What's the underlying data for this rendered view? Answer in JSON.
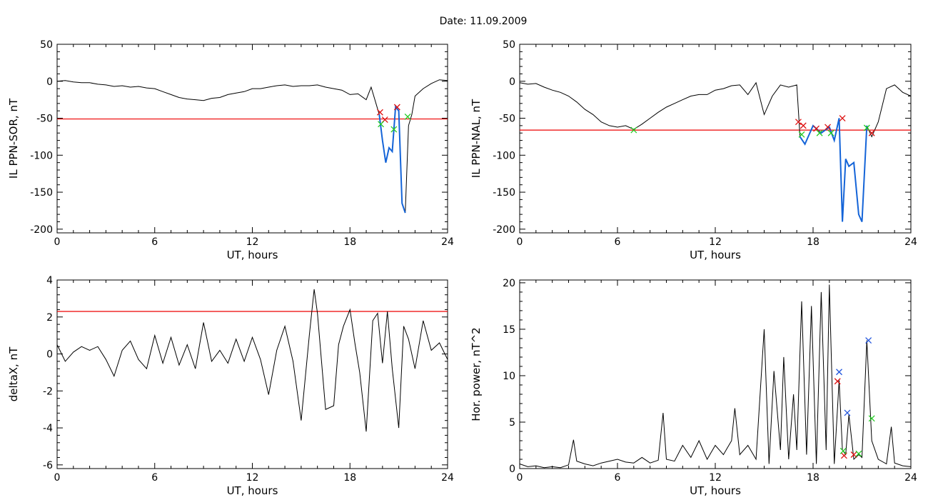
{
  "page_title": "Date:  11.09.2009",
  "colors": {
    "trace": "#000000",
    "threshold": "#ee0000",
    "highlight": "#1464d8",
    "marker_red": "#dd1111",
    "marker_green": "#22cc22",
    "marker_blue": "#2255dd"
  },
  "chart_data": [
    {
      "id": "il-sor",
      "type": "line",
      "xlabel": "UT, hours",
      "ylabel": "IL PPN-SOR, nT",
      "xlim": [
        0,
        24
      ],
      "ylim": [
        -205,
        50
      ],
      "xticks": [
        0,
        6,
        12,
        18,
        24
      ],
      "yticks": [
        50,
        0,
        -50,
        -100,
        -150,
        -200
      ],
      "threshold": -51,
      "x": [
        0,
        0.5,
        1,
        1.5,
        2,
        2.5,
        3,
        3.5,
        4,
        4.5,
        5,
        5.5,
        6,
        6.5,
        7,
        7.5,
        8,
        8.5,
        9,
        9.5,
        10,
        10.5,
        11,
        11.5,
        12,
        12.5,
        13,
        13.5,
        14,
        14.5,
        15,
        15.5,
        16,
        16.5,
        17,
        17.5,
        18,
        18.5,
        19,
        19.3,
        19.6,
        19.8,
        20,
        20.2,
        20.4,
        20.6,
        20.8,
        21,
        21.2,
        21.4,
        21.6,
        21.8,
        22,
        22.5,
        23,
        23.5,
        24
      ],
      "y": [
        0,
        1,
        -1,
        -2,
        -2,
        -4,
        -5,
        -7,
        -6,
        -8,
        -7,
        -9,
        -10,
        -14,
        -18,
        -22,
        -24,
        -25,
        -26,
        -23,
        -22,
        -18,
        -16,
        -14,
        -10,
        -10,
        -8,
        -6,
        -5,
        -7,
        -6,
        -6,
        -5,
        -8,
        -10,
        -12,
        -18,
        -17,
        -25,
        -8,
        -30,
        -45,
        -80,
        -110,
        -90,
        -95,
        -35,
        -40,
        -165,
        -178,
        -60,
        -45,
        -20,
        -10,
        -3,
        2,
        1
      ],
      "highlight": {
        "x0": 19.8,
        "x1": 21.4
      },
      "markers": [
        {
          "x": 19.85,
          "y": -42,
          "color": "red"
        },
        {
          "x": 20.15,
          "y": -52,
          "color": "red"
        },
        {
          "x": 20.9,
          "y": -35,
          "color": "red"
        },
        {
          "x": 19.9,
          "y": -58,
          "color": "green"
        },
        {
          "x": 20.7,
          "y": -65,
          "color": "green"
        },
        {
          "x": 21.55,
          "y": -48,
          "color": "green"
        }
      ]
    },
    {
      "id": "il-nal",
      "type": "line",
      "xlabel": "UT, hours",
      "ylabel": "IL PPN-NAL, nT",
      "xlim": [
        0,
        24
      ],
      "ylim": [
        -205,
        50
      ],
      "xticks": [
        0,
        6,
        12,
        18,
        24
      ],
      "yticks": [
        50,
        0,
        -50,
        -100,
        -150,
        -200
      ],
      "threshold": -66,
      "x": [
        0,
        0.5,
        1,
        1.5,
        2,
        2.5,
        3,
        3.5,
        4,
        4.5,
        5,
        5.5,
        6,
        6.5,
        7,
        7.5,
        8,
        8.5,
        9,
        9.5,
        10,
        10.5,
        11,
        11.5,
        12,
        12.5,
        13,
        13.5,
        14,
        14.5,
        15,
        15.5,
        16,
        16.5,
        17,
        17.2,
        17.5,
        18,
        18.5,
        19,
        19.3,
        19.6,
        19.8,
        20,
        20.2,
        20.5,
        20.8,
        21,
        21.3,
        21.6,
        22,
        22.5,
        23,
        23.5,
        24
      ],
      "y": [
        -2,
        -4,
        -3,
        -8,
        -12,
        -15,
        -20,
        -28,
        -38,
        -45,
        -55,
        -60,
        -62,
        -60,
        -65,
        -58,
        -50,
        -42,
        -35,
        -30,
        -25,
        -20,
        -18,
        -18,
        -12,
        -10,
        -6,
        -5,
        -18,
        -2,
        -45,
        -20,
        -5,
        -8,
        -5,
        -75,
        -85,
        -60,
        -70,
        -62,
        -80,
        -50,
        -190,
        -105,
        -115,
        -110,
        -180,
        -190,
        -60,
        -75,
        -55,
        -10,
        -5,
        -15,
        -20
      ],
      "highlight": {
        "x0": 17.1,
        "x1": 21.5
      },
      "markers": [
        {
          "x": 7.0,
          "y": -66,
          "color": "green"
        },
        {
          "x": 17.1,
          "y": -55,
          "color": "red"
        },
        {
          "x": 17.4,
          "y": -60,
          "color": "red"
        },
        {
          "x": 18.2,
          "y": -64,
          "color": "red"
        },
        {
          "x": 18.9,
          "y": -62,
          "color": "red"
        },
        {
          "x": 19.8,
          "y": -50,
          "color": "red"
        },
        {
          "x": 21.6,
          "y": -70,
          "color": "red"
        },
        {
          "x": 17.3,
          "y": -72,
          "color": "green"
        },
        {
          "x": 18.4,
          "y": -70,
          "color": "green"
        },
        {
          "x": 19.1,
          "y": -70,
          "color": "green"
        },
        {
          "x": 21.3,
          "y": -63,
          "color": "green"
        }
      ]
    },
    {
      "id": "deltax",
      "type": "line",
      "xlabel": "UT, hours",
      "ylabel": "deltaX, nT",
      "xlim": [
        0,
        24
      ],
      "ylim": [
        -6.2,
        4
      ],
      "xticks": [
        0,
        6,
        12,
        18,
        24
      ],
      "yticks": [
        4,
        2,
        0,
        -2,
        -4,
        -6
      ],
      "threshold": 2.3,
      "x": [
        0,
        0.5,
        1,
        1.5,
        2,
        2.5,
        3,
        3.5,
        4,
        4.5,
        5,
        5.5,
        6,
        6.5,
        7,
        7.5,
        8,
        8.5,
        9,
        9.5,
        10,
        10.5,
        11,
        11.5,
        12,
        12.5,
        13,
        13.5,
        14,
        14.5,
        15,
        15.5,
        15.8,
        16,
        16.5,
        17,
        17.3,
        17.6,
        18,
        18.3,
        18.6,
        19,
        19.4,
        19.7,
        20,
        20.3,
        20.6,
        21,
        21.3,
        21.6,
        22,
        22.5,
        23,
        23.5,
        24
      ],
      "y": [
        0.5,
        -0.4,
        0.1,
        0.4,
        0.2,
        0.4,
        -0.3,
        -1.2,
        0.2,
        0.7,
        -0.3,
        -0.8,
        1.0,
        -0.5,
        0.9,
        -0.6,
        0.5,
        -0.8,
        1.7,
        -0.4,
        0.2,
        -0.5,
        0.8,
        -0.4,
        0.9,
        -0.3,
        -2.2,
        0.2,
        1.5,
        -0.4,
        -3.6,
        1.0,
        3.5,
        2.2,
        -3.0,
        -2.8,
        0.5,
        1.5,
        2.4,
        0.6,
        -1.0,
        -4.2,
        1.8,
        2.2,
        -0.5,
        2.3,
        -0.8,
        -4.0,
        1.5,
        0.8,
        -0.8,
        1.8,
        0.2,
        0.6,
        -0.3
      ]
    },
    {
      "id": "hor-power",
      "type": "line",
      "xlabel": "UT, hours",
      "ylabel": "Hor. power, nT^2",
      "xlim": [
        0,
        24
      ],
      "ylim": [
        0,
        20.3
      ],
      "xticks": [
        0,
        6,
        12,
        18,
        24
      ],
      "yticks": [
        20,
        15,
        10,
        5,
        0
      ],
      "x": [
        0,
        0.5,
        1,
        1.5,
        2,
        2.5,
        3,
        3.3,
        3.5,
        4,
        4.5,
        5,
        5.5,
        6,
        6.5,
        7,
        7.5,
        8,
        8.5,
        8.8,
        9,
        9.5,
        10,
        10.5,
        11,
        11.5,
        12,
        12.5,
        13,
        13.2,
        13.5,
        14,
        14.5,
        15,
        15.3,
        15.6,
        16,
        16.2,
        16.5,
        16.8,
        17,
        17.3,
        17.6,
        17.9,
        18.2,
        18.5,
        18.8,
        19,
        19.3,
        19.6,
        19.8,
        20,
        20.2,
        20.5,
        20.8,
        21,
        21.3,
        21.6,
        22,
        22.5,
        22.8,
        23,
        23.5,
        24
      ],
      "y": [
        0.5,
        0.2,
        0.3,
        0.1,
        0.2,
        0.1,
        0.4,
        3.1,
        0.8,
        0.5,
        0.3,
        0.6,
        0.8,
        1.0,
        0.7,
        0.6,
        1.2,
        0.6,
        0.9,
        6.0,
        1.0,
        0.8,
        2.5,
        1.2,
        3.0,
        1.0,
        2.5,
        1.5,
        3.0,
        6.5,
        1.5,
        2.5,
        1.0,
        15.0,
        0.5,
        10.5,
        2.0,
        12.0,
        1.0,
        8.0,
        2.0,
        18.0,
        1.5,
        17.5,
        0.5,
        19.0,
        2.0,
        19.8,
        0.5,
        9.5,
        2.0,
        1.5,
        5.8,
        1.0,
        1.5,
        1.2,
        13.8,
        3.0,
        1.0,
        0.5,
        4.5,
        0.6,
        0.3,
        0.2
      ],
      "markers": [
        {
          "x": 19.5,
          "y": 9.4,
          "color": "red"
        },
        {
          "x": 19.9,
          "y": 1.4,
          "color": "red"
        },
        {
          "x": 20.5,
          "y": 1.5,
          "color": "red"
        },
        {
          "x": 19.6,
          "y": 10.4,
          "color": "blue"
        },
        {
          "x": 20.1,
          "y": 6.0,
          "color": "blue"
        },
        {
          "x": 21.4,
          "y": 13.8,
          "color": "blue"
        },
        {
          "x": 19.85,
          "y": 1.9,
          "color": "green"
        },
        {
          "x": 20.8,
          "y": 1.6,
          "color": "green"
        },
        {
          "x": 21.6,
          "y": 5.4,
          "color": "green"
        }
      ]
    }
  ]
}
